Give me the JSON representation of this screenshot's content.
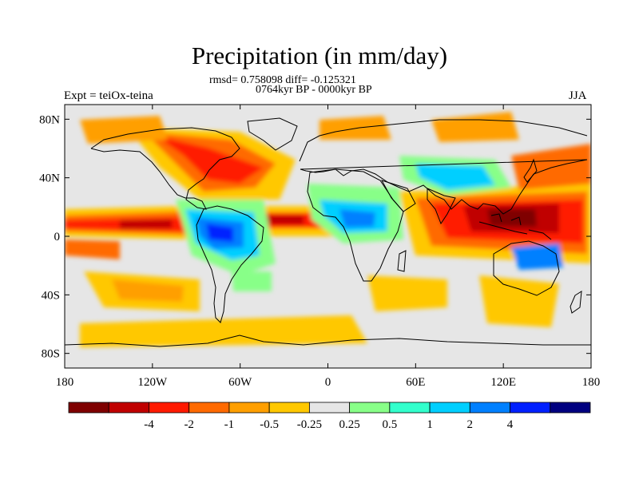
{
  "chart_data": {
    "type": "heatmap",
    "title": "Precipitation (in mm/day)",
    "stats_label": "rmsd= 0.758098 diff= -0.125321",
    "period_label": "0764kyr BP - 0000kyr BP",
    "left_label": "Expt = teiOx-teina",
    "right_label": "JJA",
    "x_ticks": [
      {
        "value": -180,
        "label": "180"
      },
      {
        "value": -120,
        "label": "120W"
      },
      {
        "value": -60,
        "label": "60W"
      },
      {
        "value": 0,
        "label": "0"
      },
      {
        "value": 60,
        "label": "60E"
      },
      {
        "value": 120,
        "label": "120E"
      },
      {
        "value": 180,
        "label": "180"
      }
    ],
    "y_ticks": [
      {
        "value": 80,
        "label": "80N"
      },
      {
        "value": 40,
        "label": "40N"
      },
      {
        "value": 0,
        "label": "0"
      },
      {
        "value": -40,
        "label": "40S"
      },
      {
        "value": -80,
        "label": "80S"
      }
    ],
    "xlim": [
      -180,
      180
    ],
    "ylim": [
      -90,
      90
    ],
    "colorbar": {
      "colors": [
        "#7f0000",
        "#c00000",
        "#ff1a00",
        "#ff6a00",
        "#ff9f00",
        "#ffc800",
        "#e6e6e6",
        "#88ff88",
        "#33ffcc",
        "#00cfff",
        "#0080ff",
        "#0020ff",
        "#000080"
      ],
      "labels": [
        "-4",
        "-2",
        "-1",
        "-0.5",
        "-0.25",
        "0.25",
        "0.5",
        "1",
        "2",
        "4"
      ]
    },
    "field": [
      {
        "lon": -160,
        "lat": 3,
        "value": -2
      },
      {
        "lon": -115,
        "lat": 8,
        "value": -4
      },
      {
        "lon": -75,
        "lat": -3,
        "value": 4
      },
      {
        "lon": -55,
        "lat": 8,
        "value": 1
      },
      {
        "lon": -35,
        "lat": 3,
        "value": -2
      },
      {
        "lon": -65,
        "lat": 45,
        "value": -2
      },
      {
        "lon": -95,
        "lat": 60,
        "value": -1
      },
      {
        "lon": 10,
        "lat": 15,
        "value": 1
      },
      {
        "lon": 30,
        "lat": 8,
        "value": 2
      },
      {
        "lon": 70,
        "lat": 10,
        "value": -2
      },
      {
        "lon": 100,
        "lat": 5,
        "value": -4
      },
      {
        "lon": 130,
        "lat": 0,
        "value": -4
      },
      {
        "lon": 145,
        "lat": -5,
        "value": 2
      },
      {
        "lon": 160,
        "lat": 12,
        "value": -2
      },
      {
        "lon": 90,
        "lat": 40,
        "value": 0.5
      },
      {
        "lon": -130,
        "lat": -20,
        "value": -0.5
      },
      {
        "lon": -10,
        "lat": -60,
        "value": -0.5
      },
      {
        "lon": 90,
        "lat": -35,
        "value": -0.5
      }
    ]
  }
}
